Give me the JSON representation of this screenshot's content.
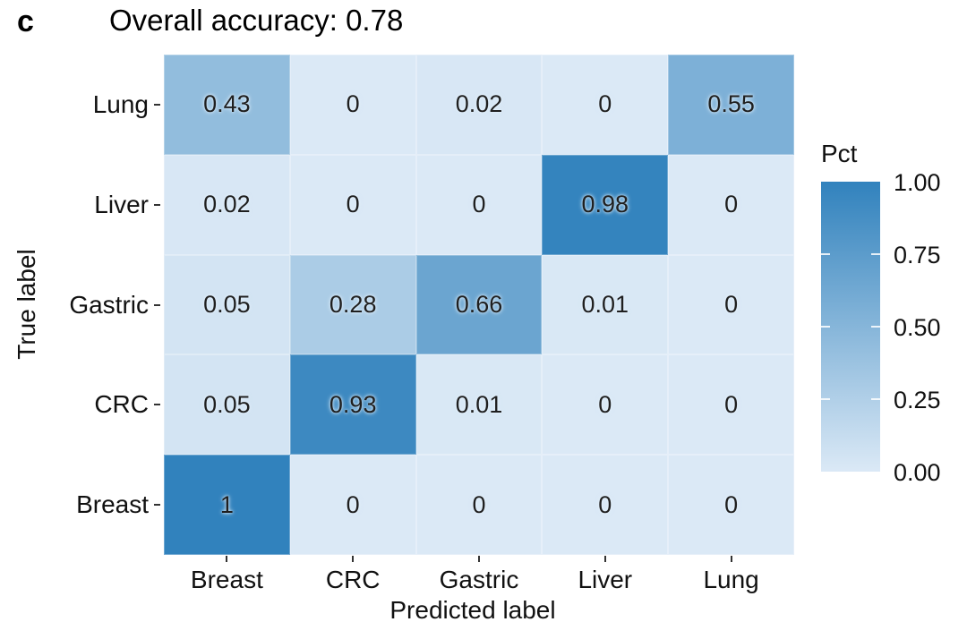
{
  "panel_label": "c",
  "chart_data": {
    "type": "heatmap",
    "title": "Overall accuracy: 0.78",
    "xlabel": "Predicted label",
    "ylabel": "True label",
    "x_categories": [
      "Breast",
      "CRC",
      "Gastric",
      "Liver",
      "Lung"
    ],
    "y_categories": [
      "Lung",
      "Liver",
      "Gastric",
      "CRC",
      "Breast"
    ],
    "matrix": [
      [
        0.43,
        0,
        0.02,
        0,
        0.55
      ],
      [
        0.02,
        0,
        0,
        0.98,
        0
      ],
      [
        0.05,
        0.28,
        0.66,
        0.01,
        0
      ],
      [
        0.05,
        0.93,
        0.01,
        0,
        0
      ],
      [
        1,
        0,
        0,
        0,
        0
      ]
    ],
    "cell_labels": [
      [
        "0.43",
        "0",
        "0.02",
        "0",
        "0.55"
      ],
      [
        "0.02",
        "0",
        "0",
        "0.98",
        "0"
      ],
      [
        "0.05",
        "0.28",
        "0.66",
        "0.01",
        "0"
      ],
      [
        "0.05",
        "0.93",
        "0.01",
        "0",
        "0"
      ],
      [
        "1",
        "0",
        "0",
        "0",
        "0"
      ]
    ],
    "value_range": [
      0,
      1
    ],
    "grid": false,
    "legend_position": "right",
    "legend": {
      "title": "Pct",
      "tick_labels": [
        "1.00",
        "0.75",
        "0.50",
        "0.25",
        "0.00"
      ],
      "tick_values": [
        1.0,
        0.75,
        0.5,
        0.25,
        0.0
      ],
      "low_color": "#dbe9f6",
      "high_color": "#3182bd"
    }
  }
}
